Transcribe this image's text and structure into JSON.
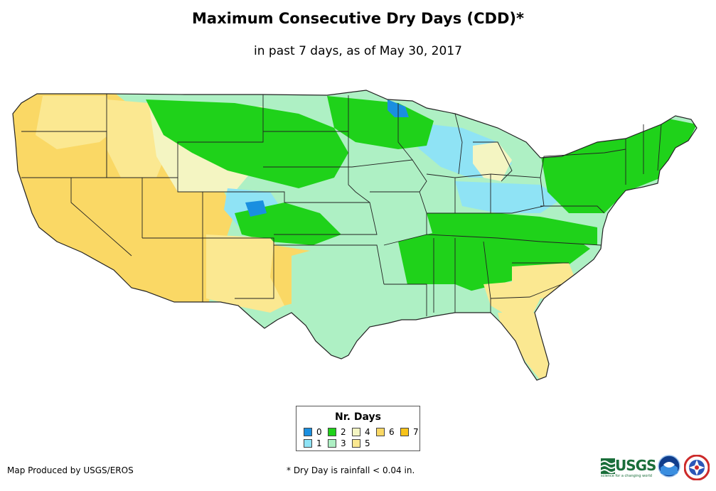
{
  "title": "Maximum Consecutive Dry Days (CDD)*",
  "subtitle": "in past 7 days, as of May 30, 2017",
  "legend": {
    "title": "Nr. Days",
    "items": [
      {
        "label": "0",
        "color": "#1a8fe0"
      },
      {
        "label": "1",
        "color": "#8fe3f5"
      },
      {
        "label": "2",
        "color": "#1fd21a"
      },
      {
        "label": "3",
        "color": "#aef0c4"
      },
      {
        "label": "4",
        "color": "#f4f5c2"
      },
      {
        "label": "5",
        "color": "#fbe891"
      },
      {
        "label": "6",
        "color": "#fad865"
      },
      {
        "label": "7",
        "color": "#f7c31a"
      }
    ]
  },
  "credit": "Map Produced by USGS/EROS",
  "footnote": "* Dry Day is rainfall < 0.04 in.",
  "logos": {
    "usgs": "USGS",
    "usgs_tagline": "science for a changing world"
  }
}
